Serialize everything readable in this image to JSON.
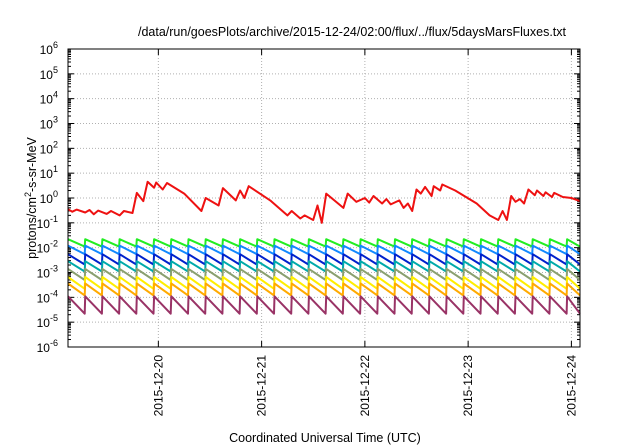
{
  "chart_data": {
    "type": "line",
    "title": "/data/run/goesPlots/archive/2015-12-24/02:00/flux/../flux/5daysMarsFluxes.txt",
    "xlabel": "Coordinated Universal Time (UTC)",
    "ylabel": {
      "pre": "protons/cm",
      "sup": "2",
      "post": "-s-sr-MeV"
    },
    "y_scale": "log",
    "ylim": [
      1e-06,
      1000000.0
    ],
    "y_tick_exponents": [
      -6,
      -5,
      -4,
      -3,
      -2,
      -1,
      0,
      1,
      2,
      3,
      4,
      5,
      6
    ],
    "y_tick_base": "10",
    "xlim": [
      "2015-12-19T03:00",
      "2015-12-24T02:00"
    ],
    "x_ticks": [
      "2015-12-20",
      "2015-12-21",
      "2015-12-22",
      "2015-12-23",
      "2015-12-24"
    ],
    "grid": true,
    "legend": "none",
    "series": [
      {
        "color": "#ee1111",
        "points": [
          [
            "2015-12-19T03:00",
            0.35
          ],
          [
            "2015-12-19T04:00",
            0.28
          ],
          [
            "2015-12-19T05:00",
            0.34
          ],
          [
            "2015-12-19T07:00",
            0.26
          ],
          [
            "2015-12-19T08:00",
            0.33
          ],
          [
            "2015-12-19T09:00",
            0.22
          ],
          [
            "2015-12-19T10:00",
            0.31
          ],
          [
            "2015-12-19T12:00",
            0.23
          ],
          [
            "2015-12-19T13:00",
            0.3
          ],
          [
            "2015-12-19T15:00",
            0.2
          ],
          [
            "2015-12-19T16:00",
            0.3
          ],
          [
            "2015-12-19T18:00",
            0.25
          ],
          [
            "2015-12-19T19:00",
            1.6
          ],
          [
            "2015-12-19T20:30",
            0.75
          ],
          [
            "2015-12-19T21:30",
            4.5
          ],
          [
            "2015-12-19T23:00",
            2.6
          ],
          [
            "2015-12-19T23:30",
            4.2
          ],
          [
            "2015-12-20T01:00",
            2.2
          ],
          [
            "2015-12-20T02:00",
            4.0
          ],
          [
            "2015-12-20T06:00",
            1.5
          ],
          [
            "2015-12-20T10:00",
            0.3
          ],
          [
            "2015-12-20T11:00",
            1.0
          ],
          [
            "2015-12-20T14:00",
            0.5
          ],
          [
            "2015-12-20T15:00",
            2.5
          ],
          [
            "2015-12-20T18:00",
            0.8
          ],
          [
            "2015-12-20T19:00",
            2.0
          ],
          [
            "2015-12-20T20:00",
            1.0
          ],
          [
            "2015-12-20T21:00",
            3.0
          ],
          [
            "2015-12-21T02:00",
            0.8
          ],
          [
            "2015-12-21T06:00",
            0.2
          ],
          [
            "2015-12-21T07:00",
            0.3
          ],
          [
            "2015-12-21T09:00",
            0.15
          ],
          [
            "2015-12-21T10:00",
            0.2
          ],
          [
            "2015-12-21T12:00",
            0.13
          ],
          [
            "2015-12-21T13:00",
            0.5
          ],
          [
            "2015-12-21T14:00",
            0.1
          ],
          [
            "2015-12-21T15:00",
            1.5
          ],
          [
            "2015-12-21T19:00",
            0.4
          ],
          [
            "2015-12-21T20:00",
            1.5
          ],
          [
            "2015-12-21T22:00",
            0.7
          ],
          [
            "2015-12-22T00:00",
            1.0
          ],
          [
            "2015-12-22T01:00",
            0.65
          ],
          [
            "2015-12-22T02:00",
            1.2
          ],
          [
            "2015-12-22T04:00",
            0.6
          ],
          [
            "2015-12-22T05:00",
            0.9
          ],
          [
            "2015-12-22T06:00",
            0.55
          ],
          [
            "2015-12-22T08:00",
            0.8
          ],
          [
            "2015-12-22T09:00",
            0.4
          ],
          [
            "2015-12-22T10:00",
            0.6
          ],
          [
            "2015-12-22T11:00",
            0.3
          ],
          [
            "2015-12-22T12:00",
            2.2
          ],
          [
            "2015-12-22T13:00",
            1.5
          ],
          [
            "2015-12-22T14:00",
            2.8
          ],
          [
            "2015-12-22T15:30",
            1.2
          ],
          [
            "2015-12-22T16:00",
            3.0
          ],
          [
            "2015-12-22T17:30",
            2.0
          ],
          [
            "2015-12-22T18:00",
            3.5
          ],
          [
            "2015-12-22T21:00",
            2.0
          ],
          [
            "2015-12-23T02:00",
            0.6
          ],
          [
            "2015-12-23T05:00",
            0.2
          ],
          [
            "2015-12-23T07:00",
            0.13
          ],
          [
            "2015-12-23T08:00",
            0.3
          ],
          [
            "2015-12-23T09:00",
            0.13
          ],
          [
            "2015-12-23T10:00",
            1.2
          ],
          [
            "2015-12-23T11:00",
            0.7
          ],
          [
            "2015-12-23T12:00",
            0.9
          ],
          [
            "2015-12-23T13:00",
            0.6
          ],
          [
            "2015-12-23T14:00",
            2.2
          ],
          [
            "2015-12-23T15:30",
            1.3
          ],
          [
            "2015-12-23T16:00",
            2.0
          ],
          [
            "2015-12-23T17:30",
            1.2
          ],
          [
            "2015-12-23T18:00",
            1.7
          ],
          [
            "2015-12-23T19:30",
            1.1
          ],
          [
            "2015-12-23T20:00",
            1.6
          ],
          [
            "2015-12-23T22:00",
            1.1
          ],
          [
            "2015-12-24T00:00",
            1.0
          ],
          [
            "2015-12-24T02:00",
            0.75
          ]
        ]
      },
      {
        "color": "#22ee22",
        "base": 0.011,
        "amp": 2.0,
        "trend": 0
      },
      {
        "color": "#1188ff",
        "base": 0.0055,
        "amp": 2.2,
        "trend": 0
      },
      {
        "color": "#0022cc",
        "base": 0.0021,
        "amp": 2.6,
        "trend": 0
      },
      {
        "color": "#00aaaa",
        "base": 0.0011,
        "amp": 2.6,
        "trend": 0
      },
      {
        "color": "#8aa070",
        "base": 0.0005,
        "amp": 2.8,
        "trend": 0
      },
      {
        "color": "#ffee00",
        "base": 0.00022,
        "amp": 3.0,
        "trend": 0
      },
      {
        "color": "#ffaa00",
        "base": 0.00012,
        "amp": 3.0,
        "trend": 0
      },
      {
        "color": "#993366",
        "base": 2.2e-05,
        "amp": 5.0,
        "trend": 0
      }
    ]
  }
}
